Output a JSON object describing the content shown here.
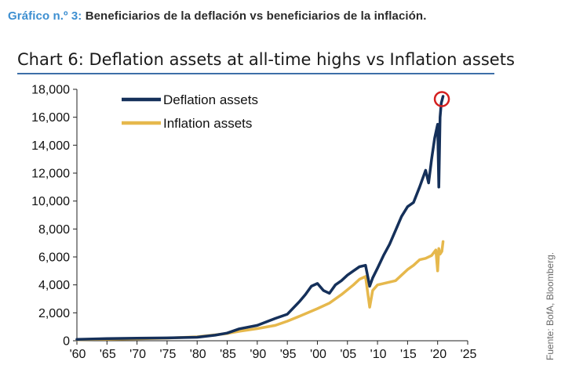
{
  "caption": {
    "prefix": "Gráfico n.º 3:",
    "text": "Beneficiarios de la deflación vs beneficiarios de la inflación."
  },
  "source": "Fuente: BofA, Bloomberg.",
  "chart_data": {
    "type": "line",
    "title": "Chart 6: Deflation assets at all-time highs vs Inflation assets",
    "xlabel": "",
    "ylabel": "",
    "xlim": [
      1960,
      2025
    ],
    "ylim": [
      0,
      18000
    ],
    "x_ticks": [
      1960,
      1965,
      1970,
      1975,
      1980,
      1985,
      1990,
      1995,
      2000,
      2005,
      2010,
      2015,
      2020,
      2025
    ],
    "x_tick_labels": [
      "'60",
      "'65",
      "'70",
      "'75",
      "'80",
      "'85",
      "'90",
      "'95",
      "'00",
      "'05",
      "'10",
      "'15",
      "'20",
      "'25"
    ],
    "y_ticks": [
      0,
      2000,
      4000,
      6000,
      8000,
      10000,
      12000,
      14000,
      16000,
      18000
    ],
    "y_tick_labels": [
      "0",
      "2,000",
      "4,000",
      "6,000",
      "8,000",
      "10,000",
      "12,000",
      "14,000",
      "16,000",
      "18,000"
    ],
    "grid": false,
    "legend_position": "top-left",
    "series": [
      {
        "name": "Deflation assets",
        "color": "#15305a",
        "x": [
          1960,
          1965,
          1970,
          1975,
          1980,
          1983,
          1985,
          1987,
          1990,
          1993,
          1995,
          1997,
          1998,
          1999,
          2000,
          2001,
          2002,
          2003,
          2004,
          2005,
          2006,
          2007,
          2008,
          2008.7,
          2009.2,
          2010,
          2011,
          2012,
          2013,
          2014,
          2015,
          2016,
          2017,
          2018,
          2018.5,
          2019,
          2019.5,
          2020,
          2020.2,
          2020.4,
          2020.6,
          2020.9
        ],
        "y": [
          100,
          150,
          180,
          200,
          250,
          400,
          550,
          850,
          1100,
          1600,
          1900,
          2800,
          3300,
          3900,
          4100,
          3600,
          3400,
          4000,
          4300,
          4700,
          5000,
          5300,
          5400,
          3900,
          4500,
          5200,
          6100,
          6900,
          7900,
          8900,
          9600,
          9900,
          11000,
          12200,
          11300,
          13000,
          14500,
          15500,
          11000,
          16000,
          17000,
          17500
        ]
      },
      {
        "name": "Inflation assets",
        "color": "#e6b84c",
        "x": [
          1960,
          1965,
          1970,
          1975,
          1980,
          1983,
          1985,
          1987,
          1990,
          1993,
          1995,
          1997,
          2000,
          2002,
          2004,
          2006,
          2007,
          2008,
          2008.7,
          2009.2,
          2010,
          2011,
          2013,
          2015,
          2016,
          2017,
          2018,
          2019,
          2019.7,
          2020,
          2020.2,
          2020.4,
          2020.7,
          2020.9
        ],
        "y": [
          80,
          110,
          140,
          190,
          280,
          420,
          520,
          680,
          870,
          1100,
          1400,
          1750,
          2300,
          2700,
          3300,
          4000,
          4400,
          4600,
          2400,
          3600,
          4000,
          4100,
          4300,
          5100,
          5400,
          5800,
          5900,
          6100,
          6500,
          5000,
          6600,
          6200,
          6400,
          7100
        ]
      }
    ],
    "annotations": [
      {
        "type": "circle",
        "x": 2020.7,
        "y": 17300,
        "color": "#d42020"
      }
    ]
  }
}
